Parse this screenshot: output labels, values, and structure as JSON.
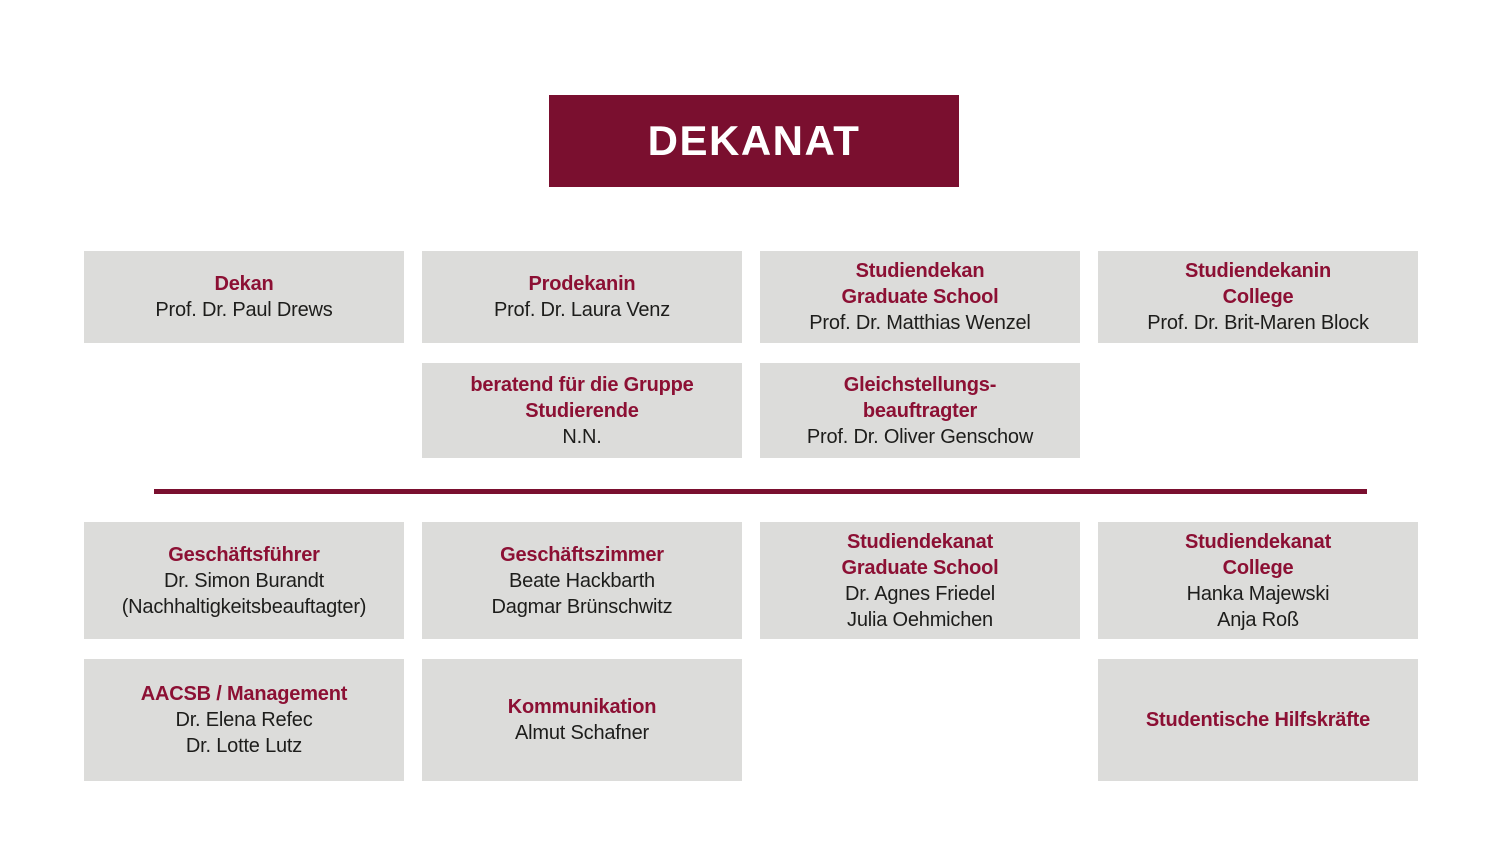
{
  "colors": {
    "maroon_header": "#7A0F2F",
    "maroon_title": "#8C1034",
    "box_gray": "#DCDCDA",
    "body_text": "#1D1D1B",
    "header_text": "#FFFFFF"
  },
  "header": {
    "title": "DEKANAT"
  },
  "org": {
    "row1": [
      {
        "title_lines": [
          "Dekan"
        ],
        "body_lines": [
          "Prof. Dr. Paul Drews"
        ]
      },
      {
        "title_lines": [
          "Prodekanin"
        ],
        "body_lines": [
          "Prof. Dr. Laura Venz"
        ]
      },
      {
        "title_lines": [
          "Studiendekan",
          "Graduate School"
        ],
        "body_lines": [
          "Prof. Dr. Matthias Wenzel"
        ]
      },
      {
        "title_lines": [
          "Studiendekanin",
          "College"
        ],
        "body_lines": [
          "Prof. Dr. Brit-Maren Block"
        ]
      }
    ],
    "row2": [
      {
        "title_lines": [
          "beratend für die Gruppe",
          "Studierende"
        ],
        "body_lines": [
          "N.N."
        ]
      },
      {
        "title_lines": [
          "Gleichstellungs-",
          "beauftragter"
        ],
        "body_lines": [
          "Prof. Dr. Oliver Genschow"
        ]
      }
    ],
    "row3": [
      {
        "title_lines": [
          "Geschäftsführer"
        ],
        "body_lines": [
          "Dr. Simon Burandt",
          "(Nachhaltigkeitsbeauftagter)"
        ]
      },
      {
        "title_lines": [
          "Geschäftszimmer"
        ],
        "body_lines": [
          "Beate Hackbarth",
          "Dagmar Brünschwitz"
        ]
      },
      {
        "title_lines": [
          "Studiendekanat",
          "Graduate School"
        ],
        "body_lines": [
          "Dr. Agnes Friedel",
          "Julia Oehmichen"
        ]
      },
      {
        "title_lines": [
          "Studiendekanat",
          "College"
        ],
        "body_lines": [
          "Hanka Majewski",
          "Anja Roß"
        ]
      }
    ],
    "row4": [
      {
        "title_lines": [
          "AACSB / Management"
        ],
        "body_lines": [
          "Dr. Elena Refec",
          "Dr. Lotte Lutz"
        ]
      },
      {
        "title_lines": [
          "Kommunikation"
        ],
        "body_lines": [
          "Almut Schafner"
        ]
      },
      {
        "title_lines": [
          "Studentische Hilfskräfte"
        ],
        "body_lines": []
      }
    ]
  }
}
